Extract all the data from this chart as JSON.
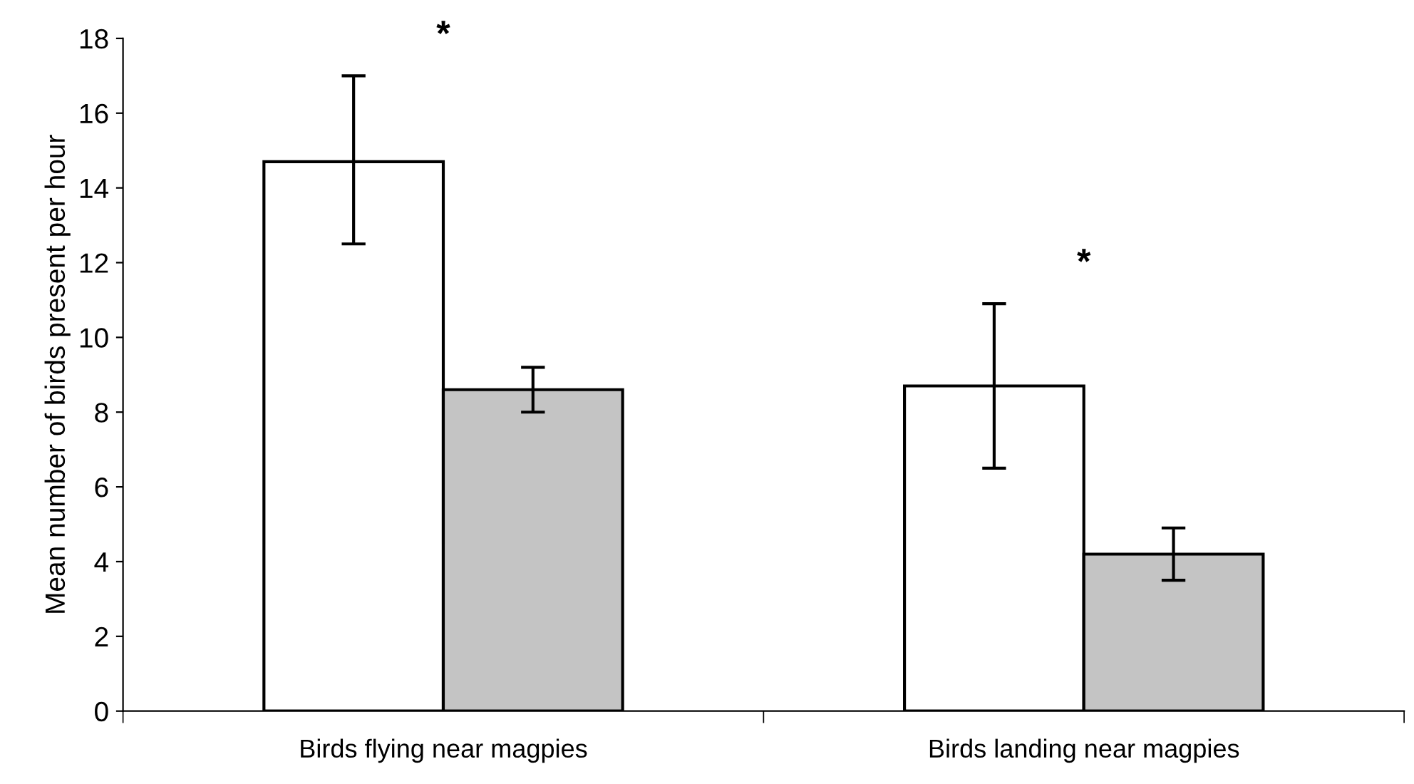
{
  "chart_data": {
    "type": "bar",
    "ylabel": "Mean number of birds present per hour",
    "categories": [
      "Birds flying near magpies",
      "Birds landing near magpies"
    ],
    "series": [
      {
        "color": "#ffffff",
        "values": [
          14.7,
          8.7
        ],
        "errors": [
          [
            12.5,
            17.0
          ],
          [
            6.5,
            10.9
          ]
        ]
      },
      {
        "color": "#c4c4c4",
        "values": [
          8.6,
          4.2
        ],
        "errors": [
          [
            8.0,
            9.2
          ],
          [
            3.5,
            4.9
          ]
        ]
      }
    ],
    "ylim": [
      0,
      18
    ],
    "yticks": [
      0,
      2,
      4,
      6,
      8,
      10,
      12,
      14,
      16,
      18
    ],
    "grid": false,
    "legend": false,
    "annotations": [
      "*",
      "*"
    ]
  }
}
